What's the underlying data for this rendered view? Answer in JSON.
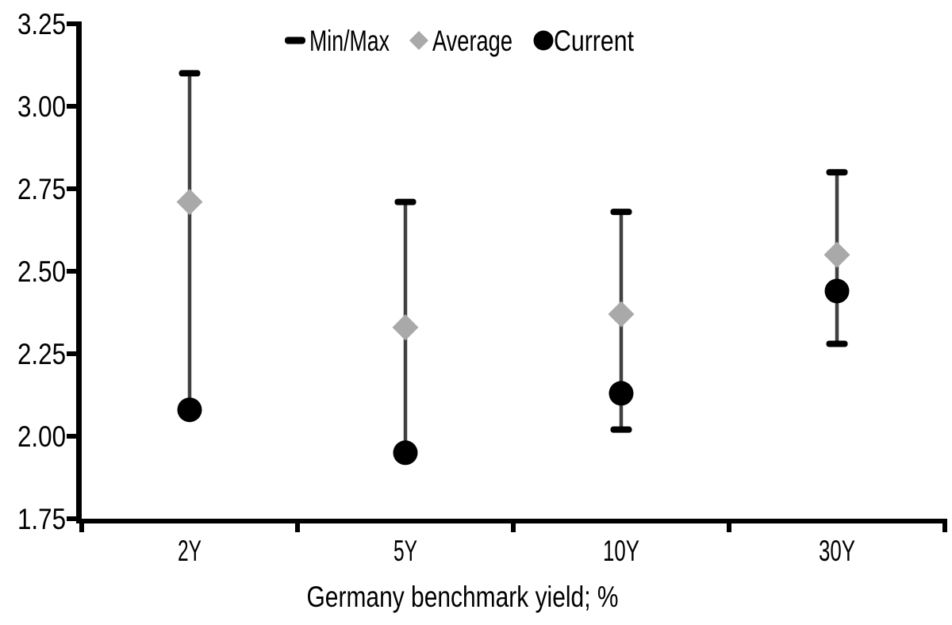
{
  "chart_data": {
    "type": "scatter",
    "subtype": "min-max-range-with-markers",
    "title": "",
    "xlabel": "Germany benchmark yield; %",
    "ylabel": "",
    "categories": [
      "2Y",
      "5Y",
      "10Y",
      "30Y"
    ],
    "y_tick_labels": [
      "1.75",
      "2.00",
      "2.25",
      "2.50",
      "2.75",
      "3.00",
      "3.25"
    ],
    "ylim": [
      1.75,
      3.25
    ],
    "y_tick_step": 0.25,
    "grid": false,
    "legend": {
      "position": "top-center",
      "items": [
        {
          "label": "Min/Max",
          "marker": "dash",
          "color": "#000000"
        },
        {
          "label": "Average",
          "marker": "diamond",
          "color": "#a9a9a9"
        },
        {
          "label": "Current",
          "marker": "circle",
          "color": "#000000"
        }
      ]
    },
    "series": [
      {
        "name": "Min/Max",
        "role": "range",
        "min": [
          2.08,
          1.95,
          2.02,
          2.28
        ],
        "max": [
          3.1,
          2.71,
          2.68,
          2.8
        ]
      },
      {
        "name": "Average",
        "role": "point",
        "marker": "diamond",
        "values": [
          2.71,
          2.33,
          2.37,
          2.55
        ]
      },
      {
        "name": "Current",
        "role": "point",
        "marker": "circle",
        "values": [
          2.08,
          1.95,
          2.13,
          2.44
        ]
      }
    ],
    "colors": {
      "range_line": "#404040",
      "cap": "#000000",
      "average_marker": "#a9a9a9",
      "current_marker": "#000000",
      "axis": "#000000",
      "text": "#000000",
      "background": "#ffffff"
    }
  }
}
